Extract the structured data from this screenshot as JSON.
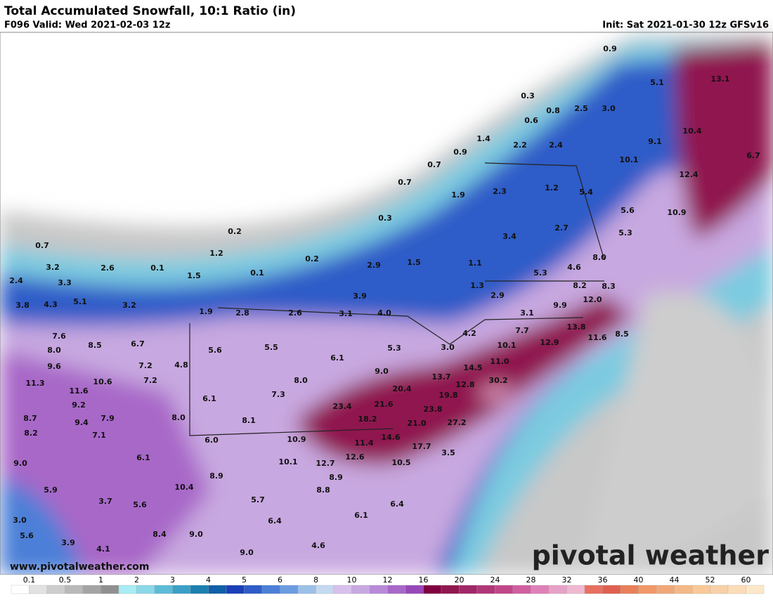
{
  "header": {
    "title": "Total Accumulated Snowfall, 10:1 Ratio (in)",
    "valid": "F096 Valid: Wed 2021-02-03 12z",
    "init": "Init: Sat 2021-01-30 12z GFSv16"
  },
  "watermark": "www.pivotalweather.com",
  "logo": "pivotal weather",
  "labels": [
    "0.9",
    "5.1",
    "13.1",
    "0.3",
    "0.8",
    "2.5",
    "3.0",
    "0.6",
    "10.4",
    "9.1",
    "1.4",
    "2.2",
    "2.4",
    "0.9",
    "10.1",
    "6.7",
    "0.7",
    "12.4",
    "0.7",
    "1.9",
    "2.3",
    "1.2",
    "5.4",
    "5.6",
    "10.9",
    "0.3",
    "2.7",
    "0.2",
    "3.4",
    "5.3",
    "0.7",
    "1.2",
    "0.2",
    "2.9",
    "1.5",
    "1.1",
    "5.3",
    "4.6",
    "8.0",
    "3.2",
    "2.6",
    "0.1",
    "0.1",
    "1.5",
    "2.4",
    "3.3",
    "1.3",
    "8.2",
    "8.3",
    "3.9",
    "2.9",
    "12.0",
    "3.8",
    "4.3",
    "5.1",
    "3.2",
    "1.9",
    "2.8",
    "2.6",
    "3.1",
    "4.0",
    "3.1",
    "9.9",
    "7.7",
    "13.8",
    "11.6",
    "8.5",
    "4.2",
    "7.6",
    "8.5",
    "6.7",
    "10.1",
    "12.9",
    "5.3",
    "3.0",
    "8.0",
    "5.6",
    "5.5",
    "6.1",
    "11.0",
    "7.2",
    "9.6",
    "4.8",
    "14.5",
    "9.0",
    "13.7",
    "7.2",
    "10.6",
    "11.3",
    "11.6",
    "12.8",
    "30.2",
    "8.0",
    "20.4",
    "7.3",
    "19.8",
    "6.1",
    "9.2",
    "23.4",
    "21.6",
    "23.8",
    "8.7",
    "7.9",
    "8.0",
    "8.1",
    "18.2",
    "21.0",
    "27.2",
    "9.4",
    "8.2",
    "7.1",
    "6.0",
    "10.9",
    "11.4",
    "14.6",
    "17.7",
    "3.5",
    "6.1",
    "12.6",
    "10.1",
    "12.7",
    "10.5",
    "9.0",
    "8.9",
    "8.9",
    "8.8",
    "10.4",
    "5.9",
    "5.7",
    "3.7",
    "5.6",
    "6.4",
    "6.1",
    "3.0",
    "6.4",
    "5.6",
    "9.0",
    "8.4",
    "3.9",
    "4.6",
    "4.1",
    "9.0"
  ],
  "colorbar": {
    "ticks": [
      0.1,
      0.5,
      1,
      2,
      3,
      4,
      5,
      6,
      8,
      10,
      12,
      16,
      20,
      24,
      28,
      32,
      36,
      40,
      44,
      52,
      60
    ],
    "colors": [
      "#ffffff",
      "#e2e2e2",
      "#cdcdcd",
      "#b9b9b9",
      "#a4a4a4",
      "#909090",
      "#a8ecf4",
      "#8ad8e8",
      "#5cbcd8",
      "#3aa0c8",
      "#1c7fb0",
      "#0f5fa8",
      "#1a3fb8",
      "#2e5cc8",
      "#4b7fd8",
      "#6b9ce0",
      "#9cc0e8",
      "#c4d8f0",
      "#d8c0ec",
      "#c8a8e0",
      "#b88ad8",
      "#a868c8",
      "#9848b8",
      "#800040",
      "#901850",
      "#a02868",
      "#b03878",
      "#c04888",
      "#d060a0",
      "#e080b8",
      "#e8a0c8",
      "#f0b8d0",
      "#e87060",
      "#e06050",
      "#e88058",
      "#f09868",
      "#f0a878",
      "#f4b888",
      "#f8c898",
      "#f8d0a8",
      "#fcdcb8",
      "#fce8c8"
    ]
  }
}
